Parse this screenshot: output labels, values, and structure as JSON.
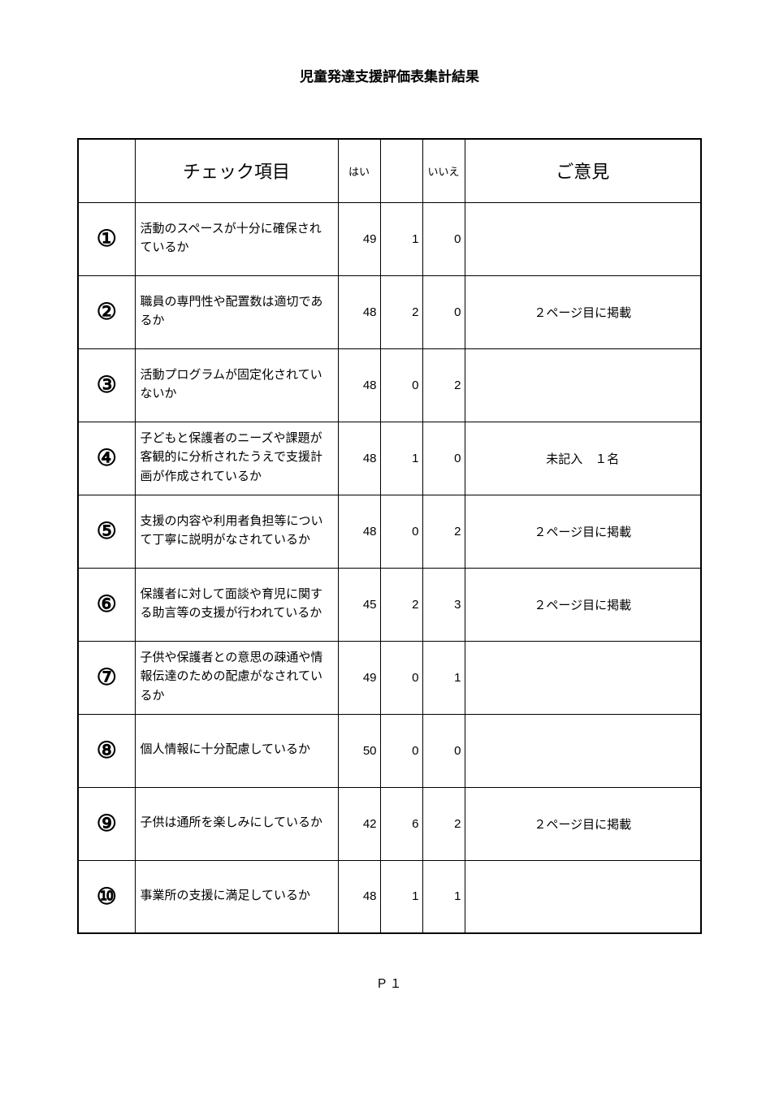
{
  "title": "児童発達支援評価表集計結果",
  "headers": {
    "item": "チェック項目",
    "yes": "はい",
    "mid": "",
    "no": "いいえ",
    "comment": "ご意見"
  },
  "rows": [
    {
      "num": "①",
      "item": "活動のスペースが十分に確保されているか",
      "yes": "49",
      "mid": "1",
      "no": "0",
      "comment": ""
    },
    {
      "num": "②",
      "item": "職員の専門性や配置数は適切であるか",
      "yes": "48",
      "mid": "2",
      "no": "0",
      "comment": "２ページ目に掲載"
    },
    {
      "num": "③",
      "item": "活動プログラムが固定化されていないか",
      "yes": "48",
      "mid": "0",
      "no": "2",
      "comment": ""
    },
    {
      "num": "④",
      "item": "子どもと保護者のニーズや課題が客観的に分析されたうえで支援計画が作成されているか",
      "yes": "48",
      "mid": "1",
      "no": "0",
      "comment": "未記入　１名"
    },
    {
      "num": "⑤",
      "item": "支援の内容や利用者負担等について丁寧に説明がなされているか",
      "yes": "48",
      "mid": "0",
      "no": "2",
      "comment": "２ページ目に掲載"
    },
    {
      "num": "⑥",
      "item": "保護者に対して面談や育児に関する助言等の支援が行われているか",
      "yes": "45",
      "mid": "2",
      "no": "3",
      "comment": "２ページ目に掲載"
    },
    {
      "num": "⑦",
      "item": "子供や保護者との意思の疎通や情報伝達のための配慮がなされているか",
      "yes": "49",
      "mid": "0",
      "no": "1",
      "comment": ""
    },
    {
      "num": "⑧",
      "item": "個人情報に十分配慮しているか",
      "yes": "50",
      "mid": "0",
      "no": "0",
      "comment": ""
    },
    {
      "num": "⑨",
      "item": "子供は通所を楽しみにしているか",
      "yes": "42",
      "mid": "6",
      "no": "2",
      "comment": "２ページ目に掲載"
    },
    {
      "num": "⑩",
      "item": "事業所の支援に満足しているか",
      "yes": "48",
      "mid": "1",
      "no": "1",
      "comment": ""
    }
  ],
  "footer": "Ｐ１"
}
